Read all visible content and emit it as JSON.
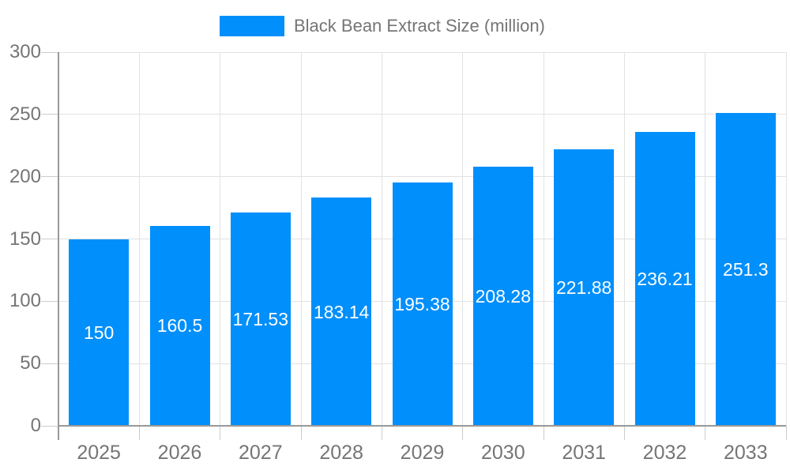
{
  "legend": {
    "label": "Black Bean Extract Size (million)"
  },
  "colors": {
    "bar": "#008FFB",
    "text": "#757575",
    "value_label": "#ffffff",
    "gridline": "#e2e2e2",
    "axis": "#999999",
    "tick": "#cccccc",
    "background": "#ffffff"
  },
  "chart_data": {
    "type": "bar",
    "title": "Black Bean Extract Size (million)",
    "categories": [
      "2025",
      "2026",
      "2027",
      "2028",
      "2029",
      "2030",
      "2031",
      "2032",
      "2033"
    ],
    "values": [
      150,
      160.5,
      171.53,
      183.14,
      195.38,
      208.28,
      221.88,
      236.21,
      251.3
    ],
    "series": [
      {
        "name": "Black Bean Extract Size (million)",
        "values": [
          150,
          160.5,
          171.53,
          183.14,
          195.38,
          208.28,
          221.88,
          236.21,
          251.3
        ]
      }
    ],
    "xlabel": "",
    "ylabel": "",
    "ylim": [
      0,
      300
    ],
    "yticks": [
      0,
      50,
      100,
      150,
      200,
      250,
      300
    ],
    "grid": true,
    "legend_position": "top-center",
    "value_labels_inside_bars": true
  }
}
